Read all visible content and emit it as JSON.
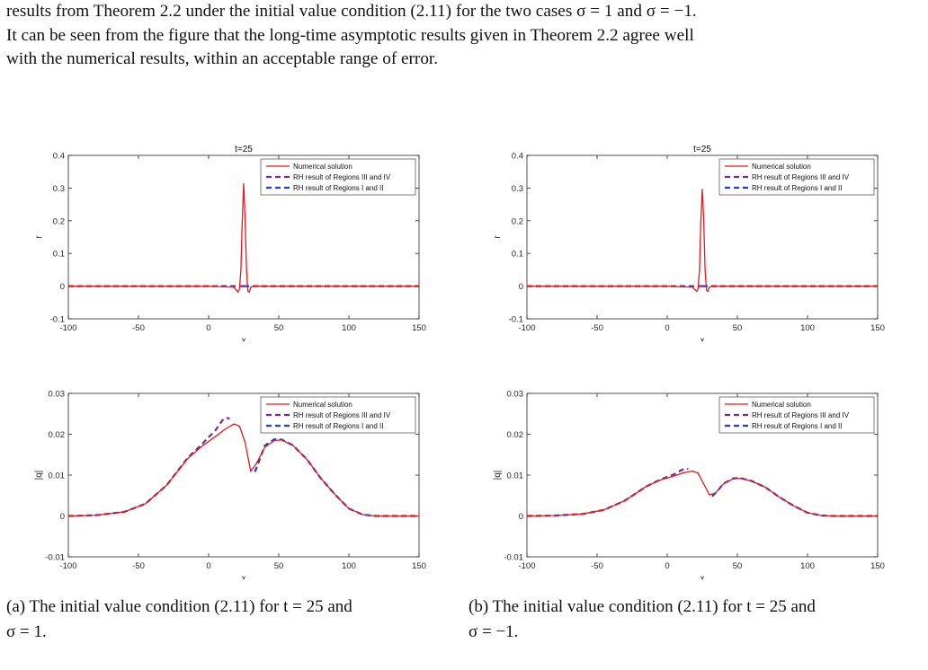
{
  "paragraph": {
    "lines": [
      "results from Theorem 2.2 under the initial value condition (2.11) for the two cases σ = 1 and σ = −1.",
      "It can be seen from the figure that the long-time asymptotic results given in Theorem 2.2 agree well",
      "with the numerical results, within an acceptable range of error."
    ]
  },
  "captions": {
    "a": {
      "line1": "(a) The initial value condition (2.11) for t = 25 and",
      "line2": "σ = 1."
    },
    "b": {
      "line1": "(b) The initial value condition (2.11) for t = 25 and",
      "line2": "σ = −1."
    }
  },
  "legend": {
    "numerical": "Numerical solution",
    "rh_34": "RH result of Regions III and IV",
    "rh_12": "RH result of Regions I and II"
  },
  "colors": {
    "numerical": "#e31a1c",
    "rh_34": "#7b2a8c",
    "rh_12": "#1f3fd6"
  },
  "chart_data": [
    {
      "id": "a-top",
      "type": "line",
      "title": "t=25",
      "xlabel": "x",
      "ylabel": "r",
      "xlim": [
        -100,
        150
      ],
      "ylim": [
        -0.1,
        0.4
      ],
      "xticks": [
        "-100",
        "-50",
        "0",
        "50",
        "100",
        "150"
      ],
      "yticks": [
        "-0.1",
        "0",
        "0.1",
        "0.2",
        "0.3",
        "0.4"
      ],
      "series": [
        {
          "name": "Numerical solution",
          "x": [
            -100,
            0,
            18,
            21,
            22,
            23,
            24,
            25,
            26,
            27,
            28,
            29,
            30,
            32,
            40,
            150
          ],
          "y": [
            0,
            0,
            -0.003,
            -0.018,
            -0.008,
            0.05,
            0.2,
            0.313,
            0.2,
            0.05,
            -0.015,
            -0.018,
            -0.003,
            0,
            0,
            0
          ]
        },
        {
          "name": "RH result of Regions III and IV",
          "x": [
            -100,
            25
          ],
          "y": [
            0,
            0
          ]
        },
        {
          "name": "RH result of Regions I and II",
          "x": [
            25,
            150
          ],
          "y": [
            0,
            0
          ]
        }
      ]
    },
    {
      "id": "a-bottom",
      "type": "line",
      "xlabel": "x",
      "ylabel": "|q|",
      "xlim": [
        -100,
        150
      ],
      "ylim": [
        -0.01,
        0.03
      ],
      "xticks": [
        "-100",
        "-50",
        "0",
        "50",
        "100",
        "150"
      ],
      "yticks": [
        "-0.01",
        "0",
        "0.01",
        "0.02",
        "0.03"
      ],
      "series": [
        {
          "name": "Numerical solution",
          "x": [
            -100,
            -80,
            -60,
            -45,
            -30,
            -15,
            -5,
            5,
            12,
            18,
            22,
            26,
            30,
            34,
            40,
            47,
            52,
            60,
            70,
            80,
            90,
            100,
            110,
            120,
            135,
            150
          ],
          "y": [
            0,
            0.0002,
            0.001,
            0.003,
            0.0075,
            0.014,
            0.017,
            0.0195,
            0.0213,
            0.0225,
            0.022,
            0.018,
            0.0109,
            0.0128,
            0.0168,
            0.0185,
            0.0186,
            0.0173,
            0.0139,
            0.0092,
            0.0053,
            0.0018,
            0.0003,
            0,
            0,
            0
          ]
        },
        {
          "name": "RH result of Regions III and IV",
          "x": [
            -100,
            -80,
            -60,
            -45,
            -30,
            -15,
            -5,
            5,
            10,
            13,
            15
          ],
          "y": [
            0,
            0.0002,
            0.001,
            0.003,
            0.0075,
            0.0142,
            0.0175,
            0.021,
            0.0235,
            0.024,
            0.0238
          ]
        },
        {
          "name": "RH result of Regions I and II",
          "x": [
            33,
            36,
            40,
            47,
            52,
            60,
            70,
            80,
            90,
            100,
            110,
            120,
            135,
            150
          ],
          "y": [
            0.0108,
            0.0135,
            0.0172,
            0.0188,
            0.0187,
            0.0173,
            0.0139,
            0.0092,
            0.0053,
            0.0018,
            0.0003,
            0,
            0,
            0
          ]
        }
      ]
    },
    {
      "id": "b-top",
      "type": "line",
      "title": "t=25",
      "xlabel": "x",
      "ylabel": "r",
      "xlim": [
        -100,
        150
      ],
      "ylim": [
        -0.1,
        0.4
      ],
      "xticks": [
        "-100",
        "-50",
        "0",
        "50",
        "100",
        "150"
      ],
      "yticks": [
        "-0.1",
        "0",
        "0.1",
        "0.2",
        "0.3",
        "0.4"
      ],
      "series": [
        {
          "name": "Numerical solution",
          "x": [
            -100,
            0,
            18,
            21,
            22,
            23,
            24,
            25,
            26,
            27,
            28,
            29,
            30,
            32,
            40,
            150
          ],
          "y": [
            0,
            0,
            -0.003,
            -0.016,
            -0.008,
            0.05,
            0.2,
            0.296,
            0.2,
            0.05,
            -0.013,
            -0.016,
            -0.003,
            0,
            0,
            0
          ]
        },
        {
          "name": "RH result of Regions III and IV",
          "x": [
            -100,
            25
          ],
          "y": [
            0,
            0
          ]
        },
        {
          "name": "RH result of Regions I and II",
          "x": [
            25,
            150
          ],
          "y": [
            0,
            0
          ]
        }
      ]
    },
    {
      "id": "b-bottom",
      "type": "line",
      "xlabel": "x",
      "ylabel": "|q|",
      "xlim": [
        -100,
        150
      ],
      "ylim": [
        -0.01,
        0.03
      ],
      "xticks": [
        "-100",
        "-50",
        "0",
        "50",
        "100",
        "150"
      ],
      "yticks": [
        "-0.01",
        "0",
        "0.01",
        "0.02",
        "0.03"
      ],
      "series": [
        {
          "name": "Numerical solution",
          "x": [
            -100,
            -80,
            -60,
            -45,
            -30,
            -15,
            -5,
            5,
            12,
            18,
            22,
            26,
            30,
            34,
            40,
            47,
            52,
            60,
            70,
            80,
            90,
            100,
            110,
            120,
            135,
            150
          ],
          "y": [
            0,
            0.0001,
            0.0005,
            0.0015,
            0.0038,
            0.0072,
            0.0088,
            0.0098,
            0.0106,
            0.011,
            0.0105,
            0.0078,
            0.0052,
            0.0055,
            0.0078,
            0.0091,
            0.0092,
            0.0086,
            0.007,
            0.0046,
            0.0025,
            0.0008,
            0.0001,
            0,
            0,
            0
          ]
        },
        {
          "name": "RH result of Regions III and IV",
          "x": [
            -100,
            -80,
            -60,
            -45,
            -30,
            -15,
            -5,
            5,
            10,
            13,
            15
          ],
          "y": [
            0,
            0.0001,
            0.0005,
            0.0015,
            0.0038,
            0.0072,
            0.0089,
            0.0102,
            0.0112,
            0.0116,
            0.0115
          ]
        },
        {
          "name": "RH result of Regions I and II",
          "x": [
            32,
            36,
            40,
            47,
            52,
            60,
            70,
            80,
            90,
            100,
            110,
            120,
            135,
            150
          ],
          "y": [
            0.0048,
            0.0062,
            0.0079,
            0.0092,
            0.0093,
            0.0086,
            0.007,
            0.0046,
            0.0025,
            0.0008,
            0.0001,
            0,
            0,
            0
          ]
        }
      ]
    }
  ]
}
